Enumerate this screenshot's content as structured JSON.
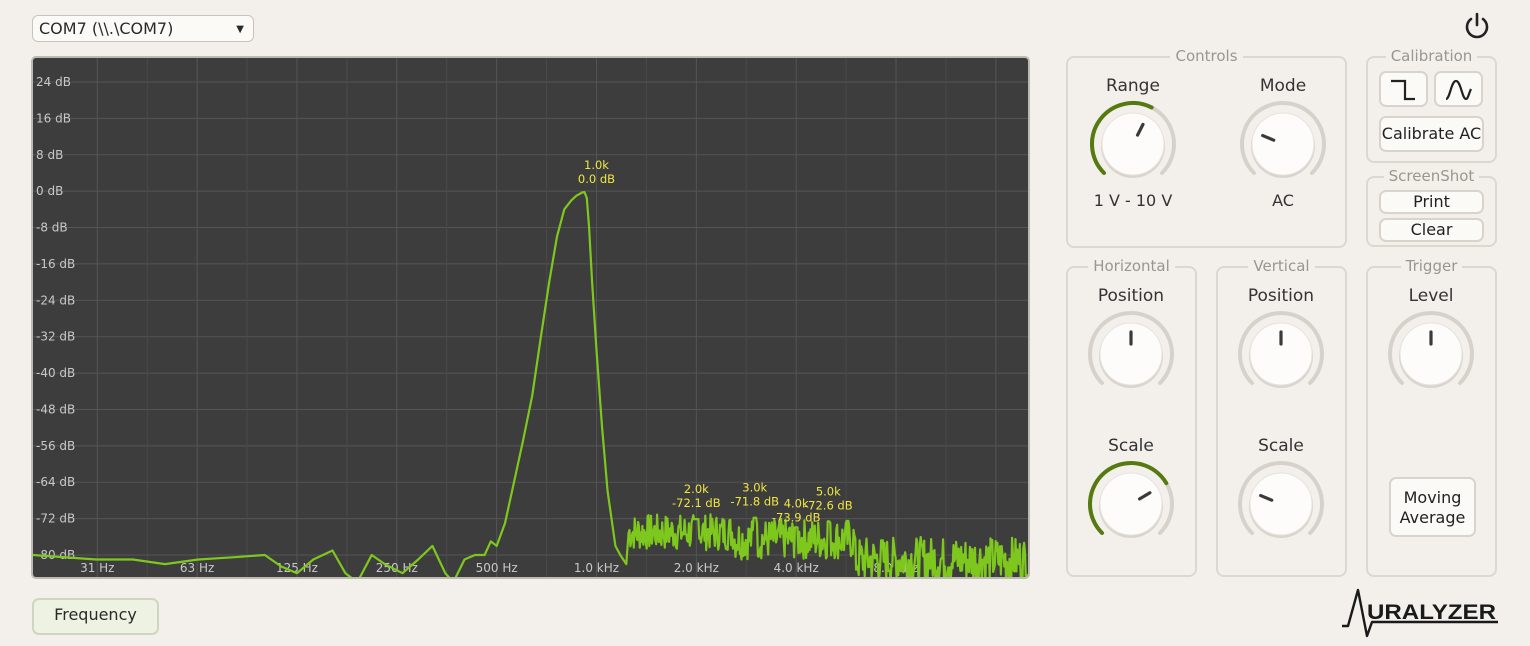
{
  "port_select": {
    "value": "COM7 (\\\\.\\COM7)"
  },
  "spectrum": {
    "y_ticks": [
      "24 dB",
      "16 dB",
      "8 dB",
      "0 dB",
      "-8 dB",
      "-16 dB",
      "-24 dB",
      "-32 dB",
      "-40 dB",
      "-48 dB",
      "-56 dB",
      "-64 dB",
      "-72 dB",
      "-80 dB"
    ],
    "x_ticks": [
      "31 Hz",
      "63 Hz",
      "125 Hz",
      "250 Hz",
      "500 Hz",
      "1.0 kHz",
      "2.0 kHz",
      "4.0 kHz",
      "8.0 kHz"
    ],
    "peaks": [
      {
        "freq": "1.0k",
        "level": "0.0 dB"
      },
      {
        "freq": "2.0k",
        "level": "-72.1 dB"
      },
      {
        "freq": "3.0k",
        "level": "-71.8 dB"
      },
      {
        "freq": "4.0k",
        "level": "-73.9 dB"
      },
      {
        "freq": "5.0k",
        "level": "-72.6 dB"
      }
    ],
    "trace_color": "#7ec81e",
    "label_color": "#f0e641"
  },
  "controls": {
    "title": "Controls",
    "range": {
      "label": "Range",
      "value": "1 V - 10 V",
      "level": 0.6
    },
    "mode": {
      "label": "Mode",
      "value": "AC",
      "level": 0.25
    }
  },
  "calibration": {
    "title": "Calibration",
    "calibrate_label": "Calibrate AC"
  },
  "screenshot": {
    "title": "ScreenShot",
    "print_label": "Print",
    "clear_label": "Clear"
  },
  "horizontal": {
    "title": "Horizontal",
    "position": {
      "label": "Position",
      "level": 0.5
    },
    "scale": {
      "label": "Scale",
      "level": 0.72
    }
  },
  "vertical": {
    "title": "Vertical",
    "position": {
      "label": "Position",
      "level": 0.5
    },
    "scale": {
      "label": "Scale",
      "level": 0.25
    }
  },
  "trigger": {
    "title": "Trigger",
    "level": {
      "label": "Level",
      "level": 0.5
    },
    "moving_average_line1": "Moving",
    "moving_average_line2": "Average"
  },
  "footer": {
    "frequency_button": "Frequency",
    "logo_text": "URALYZER"
  },
  "accent_color": "#557a10"
}
